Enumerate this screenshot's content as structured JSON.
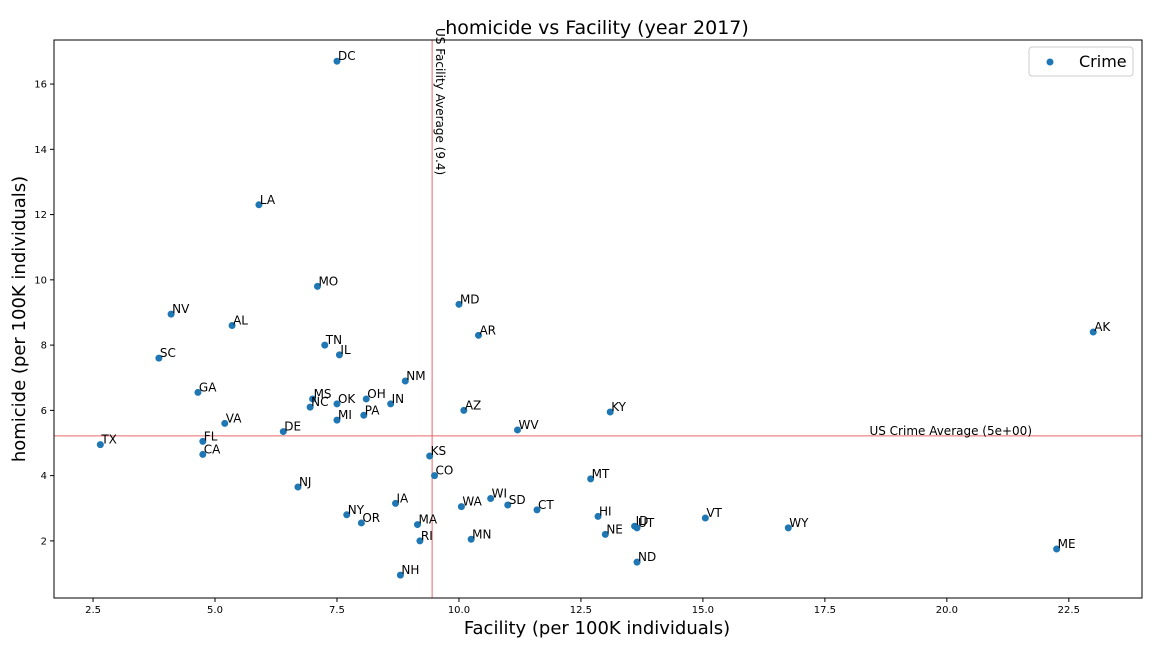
{
  "chart_data": {
    "type": "scatter",
    "title": "homicide vs Facility (year 2017)",
    "xlabel": "Facility (per 100K individuals)",
    "ylabel": "homicide (per 100K individuals)",
    "xlim": [
      1.7,
      24.0
    ],
    "ylim": [
      0.25,
      17.35
    ],
    "xticks": [
      2.5,
      5.0,
      7.5,
      10.0,
      12.5,
      15.0,
      17.5,
      20.0,
      22.5
    ],
    "xtick_labels": [
      "2.5",
      "5.0",
      "7.5",
      "10.0",
      "12.5",
      "15.0",
      "17.5",
      "20.0",
      "22.5"
    ],
    "yticks": [
      2,
      4,
      6,
      8,
      10,
      12,
      14,
      16
    ],
    "ytick_labels": [
      "2",
      "4",
      "6",
      "8",
      "10",
      "12",
      "14",
      "16"
    ],
    "grid": false,
    "legend": {
      "position": "top-right",
      "entries": [
        "Crime"
      ]
    },
    "point_color": "#1f77b4",
    "ref_color": "#e8696b",
    "vline": {
      "x": 9.45,
      "label": "US Facility Average (9.4)"
    },
    "hline": {
      "y": 5.22,
      "label": "US Crime Average (5e+00)"
    },
    "series": [
      {
        "name": "Crime",
        "points": [
          {
            "label": "DC",
            "x": 7.5,
            "y": 16.7
          },
          {
            "label": "LA",
            "x": 5.9,
            "y": 12.3
          },
          {
            "label": "MO",
            "x": 7.1,
            "y": 9.8
          },
          {
            "label": "MD",
            "x": 10.0,
            "y": 9.25
          },
          {
            "label": "NV",
            "x": 4.1,
            "y": 8.95
          },
          {
            "label": "AL",
            "x": 5.35,
            "y": 8.6
          },
          {
            "label": "AK",
            "x": 23.0,
            "y": 8.4
          },
          {
            "label": "AR",
            "x": 10.4,
            "y": 8.3
          },
          {
            "label": "TN",
            "x": 7.25,
            "y": 8.0
          },
          {
            "label": "IL",
            "x": 7.55,
            "y": 7.7
          },
          {
            "label": "SC",
            "x": 3.85,
            "y": 7.6
          },
          {
            "label": "NM",
            "x": 8.9,
            "y": 6.9
          },
          {
            "label": "GA",
            "x": 4.65,
            "y": 6.55
          },
          {
            "label": "MS",
            "x": 7.0,
            "y": 6.35
          },
          {
            "label": "OH",
            "x": 8.1,
            "y": 6.35
          },
          {
            "label": "OK",
            "x": 7.5,
            "y": 6.2
          },
          {
            "label": "IN",
            "x": 8.6,
            "y": 6.2
          },
          {
            "label": "NC",
            "x": 6.95,
            "y": 6.1
          },
          {
            "label": "AZ",
            "x": 10.1,
            "y": 6.0
          },
          {
            "label": "KY",
            "x": 13.1,
            "y": 5.95
          },
          {
            "label": "PA",
            "x": 8.05,
            "y": 5.85
          },
          {
            "label": "MI",
            "x": 7.5,
            "y": 5.7
          },
          {
            "label": "VA",
            "x": 5.2,
            "y": 5.6
          },
          {
            "label": "WV",
            "x": 11.2,
            "y": 5.4
          },
          {
            "label": "DE",
            "x": 6.4,
            "y": 5.35
          },
          {
            "label": "FL",
            "x": 4.75,
            "y": 5.05
          },
          {
            "label": "TX",
            "x": 2.65,
            "y": 4.95
          },
          {
            "label": "CA",
            "x": 4.75,
            "y": 4.65
          },
          {
            "label": "KS",
            "x": 9.4,
            "y": 4.6
          },
          {
            "label": "CO",
            "x": 9.5,
            "y": 4.0
          },
          {
            "label": "MT",
            "x": 12.7,
            "y": 3.9
          },
          {
            "label": "NJ",
            "x": 6.7,
            "y": 3.65
          },
          {
            "label": "WI",
            "x": 10.65,
            "y": 3.3
          },
          {
            "label": "IA",
            "x": 8.7,
            "y": 3.15
          },
          {
            "label": "SD",
            "x": 11.0,
            "y": 3.1
          },
          {
            "label": "WA",
            "x": 10.05,
            "y": 3.05
          },
          {
            "label": "CT",
            "x": 11.6,
            "y": 2.95
          },
          {
            "label": "NY",
            "x": 7.7,
            "y": 2.8
          },
          {
            "label": "HI",
            "x": 12.85,
            "y": 2.75
          },
          {
            "label": "VT",
            "x": 15.05,
            "y": 2.7
          },
          {
            "label": "OR",
            "x": 8.0,
            "y": 2.55
          },
          {
            "label": "MA",
            "x": 9.15,
            "y": 2.5
          },
          {
            "label": "ID",
            "x": 13.6,
            "y": 2.45
          },
          {
            "label": "UT",
            "x": 13.65,
            "y": 2.4
          },
          {
            "label": "WY",
            "x": 16.75,
            "y": 2.4
          },
          {
            "label": "NE",
            "x": 13.0,
            "y": 2.2
          },
          {
            "label": "MN",
            "x": 10.25,
            "y": 2.05
          },
          {
            "label": "RI",
            "x": 9.2,
            "y": 2.0
          },
          {
            "label": "ME",
            "x": 22.25,
            "y": 1.75
          },
          {
            "label": "ND",
            "x": 13.65,
            "y": 1.35
          },
          {
            "label": "NH",
            "x": 8.8,
            "y": 0.95
          }
        ]
      }
    ]
  }
}
